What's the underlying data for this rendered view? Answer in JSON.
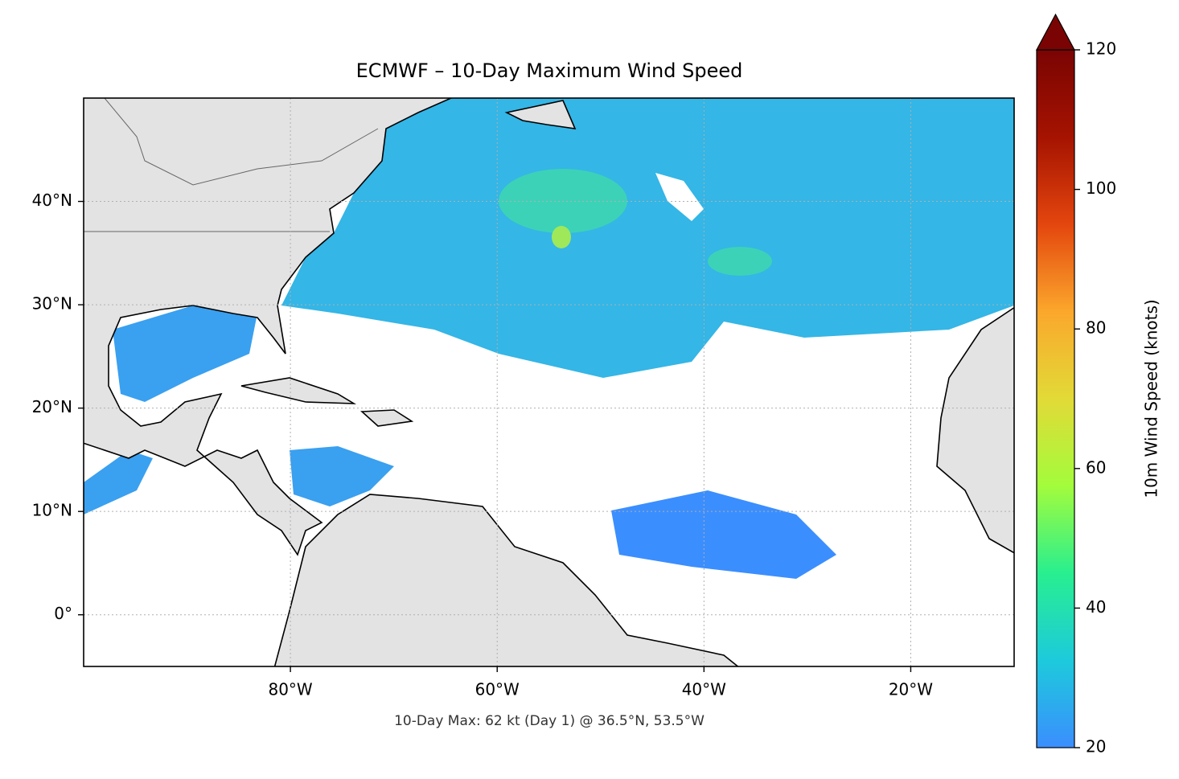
{
  "chart_data": {
    "type": "map",
    "title": "ECMWF – 10-Day Maximum Wind Speed",
    "footnote": "10-Day Max: 62 kt (Day 1) @ 36.5°N, 53.5°W",
    "xlim": [
      -100,
      -10
    ],
    "ylim": [
      -5,
      50
    ],
    "xticks": [
      {
        "value": -80,
        "label": "80°W"
      },
      {
        "value": -60,
        "label": "60°W"
      },
      {
        "value": -40,
        "label": "40°W"
      },
      {
        "value": -20,
        "label": "20°W"
      }
    ],
    "yticks": [
      {
        "value": 0,
        "label": "0°"
      },
      {
        "value": 10,
        "label": "10°N"
      },
      {
        "value": 20,
        "label": "20°N"
      },
      {
        "value": 30,
        "label": "30°N"
      },
      {
        "value": 40,
        "label": "40°N"
      }
    ],
    "grid": true,
    "colorbar": {
      "label": "10m Wind Speed (knots)",
      "lim": [
        20,
        120
      ],
      "ticks": [
        20,
        40,
        60,
        80,
        100,
        120
      ],
      "extend": "max",
      "colors": [
        "#3b8efe",
        "#1dcadc",
        "#28ef8f",
        "#a3fc3c",
        "#e2da37",
        "#fba72c",
        "#e4460e",
        "#a51301",
        "#7a0403"
      ]
    }
  }
}
